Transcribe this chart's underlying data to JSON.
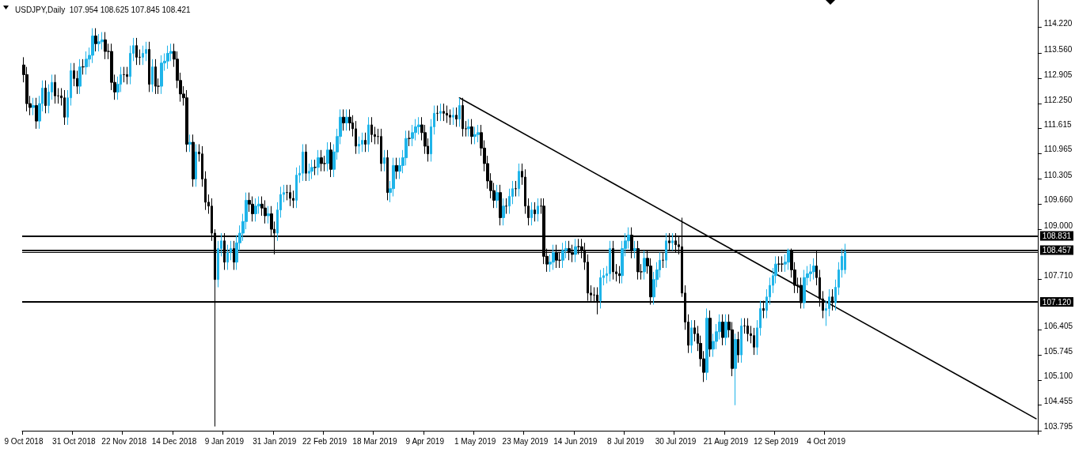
{
  "chart_data": {
    "type": "candlestick",
    "title": "USDJPY,Daily  107.954 108.625 107.845 108.421",
    "categories": [
      "9 Oct 2018",
      null,
      null,
      null,
      null,
      null,
      null,
      null,
      null,
      null,
      null,
      null,
      null,
      null,
      null,
      null,
      "31 Oct 2018",
      null,
      null,
      null,
      null,
      null,
      null,
      null,
      null,
      null,
      null,
      null,
      null,
      null,
      null,
      null,
      "22 Nov 2018",
      null,
      null,
      null,
      null,
      null,
      null,
      null,
      null,
      null,
      null,
      null,
      null,
      null,
      null,
      null,
      "14 Dec 2018",
      null,
      null,
      null,
      null,
      null,
      null,
      null,
      null,
      null,
      null,
      null,
      null,
      null,
      null,
      null,
      "9 Jan 2019",
      null,
      null,
      null,
      null,
      null,
      null,
      null,
      null,
      null,
      null,
      null,
      null,
      null,
      null,
      null,
      "31 Jan 2019",
      null,
      null,
      null,
      null,
      null,
      null,
      null,
      null,
      null,
      null,
      null,
      null,
      null,
      null,
      null,
      "22 Feb 2019",
      null,
      null,
      null,
      null,
      null,
      null,
      null,
      null,
      null,
      null,
      null,
      null,
      null,
      null,
      null,
      "18 Mar 2019",
      null,
      null,
      null,
      null,
      null,
      null,
      null,
      null,
      null,
      null,
      null,
      null,
      null,
      null,
      null,
      "9 Apr 2019",
      null,
      null,
      null,
      null,
      null,
      null,
      null,
      null,
      null,
      null,
      null,
      null,
      null,
      null,
      null,
      "1 May 2019",
      null,
      null,
      null,
      null,
      null,
      null,
      null,
      null,
      null,
      null,
      null,
      null,
      null,
      null,
      null,
      "23 May 2019",
      null,
      null,
      null,
      null,
      null,
      null,
      null,
      null,
      null,
      null,
      null,
      null,
      null,
      null,
      null,
      "14 Jun 2019",
      null,
      null,
      null,
      null,
      null,
      null,
      null,
      null,
      null,
      null,
      null,
      null,
      null,
      null,
      null,
      "8 Jul 2019",
      null,
      null,
      null,
      null,
      null,
      null,
      null,
      null,
      null,
      null,
      null,
      null,
      null,
      null,
      null,
      "30 Jul 2019",
      null,
      null,
      null,
      null,
      null,
      null,
      null,
      null,
      null,
      null,
      null,
      null,
      null,
      null,
      null,
      "21 Aug 2019",
      null,
      null,
      null,
      null,
      null,
      null,
      null,
      null,
      null,
      null,
      null,
      null,
      null,
      null,
      null,
      "12 Sep 2019",
      null,
      null,
      null,
      null,
      null,
      null,
      null,
      null,
      null,
      null,
      null,
      null,
      null,
      null,
      null,
      "4 Oct 2019",
      null,
      null,
      null,
      null,
      null,
      null,
      null,
      null,
      null,
      null,
      null,
      null,
      null,
      null,
      null,
      null,
      null,
      null,
      null,
      null,
      null,
      null,
      null,
      null,
      null,
      null,
      null,
      null,
      null,
      null,
      null,
      null,
      null,
      null,
      null,
      null,
      null,
      null,
      null,
      null,
      null,
      null,
      null,
      null,
      null,
      null,
      null,
      null,
      null,
      null,
      null,
      null,
      null,
      null,
      null,
      null,
      null,
      null,
      null,
      null,
      null,
      null,
      null,
      null,
      null,
      null,
      null
    ],
    "ohlc": [
      [
        113.25,
        113.45,
        112.8,
        113.0
      ],
      [
        113.0,
        113.2,
        112.05,
        112.25
      ],
      [
        112.25,
        112.45,
        111.95,
        112.15
      ],
      [
        112.15,
        112.4,
        111.95,
        112.2
      ],
      [
        112.2,
        112.4,
        111.6,
        111.8
      ],
      [
        111.8,
        112.45,
        111.6,
        112.25
      ],
      [
        112.25,
        112.85,
        112.05,
        112.65
      ],
      [
        112.65,
        112.85,
        112.0,
        112.2
      ],
      [
        112.2,
        112.75,
        112.0,
        112.55
      ],
      [
        112.55,
        113.0,
        112.35,
        112.8
      ],
      [
        112.8,
        113.0,
        112.25,
        112.45
      ],
      [
        112.45,
        112.65,
        112.25,
        112.45
      ],
      [
        112.45,
        112.65,
        112.2,
        112.4
      ],
      [
        112.4,
        112.6,
        111.7,
        111.9
      ],
      [
        111.9,
        112.6,
        111.7,
        112.4
      ],
      [
        112.4,
        113.3,
        112.2,
        113.1
      ],
      [
        113.1,
        113.3,
        112.7,
        112.9
      ],
      [
        112.9,
        113.1,
        112.5,
        112.7
      ],
      [
        112.7,
        113.4,
        112.5,
        113.2
      ],
      [
        113.2,
        113.4,
        113.0,
        113.2
      ],
      [
        113.2,
        113.6,
        113.0,
        113.4
      ],
      [
        113.4,
        113.7,
        113.2,
        113.5
      ],
      [
        113.5,
        114.2,
        113.3,
        114.0
      ],
      [
        114.0,
        114.2,
        113.6,
        113.8
      ],
      [
        113.8,
        114.05,
        113.6,
        113.85
      ],
      [
        113.85,
        114.1,
        113.65,
        113.9
      ],
      [
        113.9,
        114.1,
        113.4,
        113.6
      ],
      [
        113.6,
        113.8,
        113.4,
        113.6
      ],
      [
        113.6,
        113.8,
        112.6,
        112.8
      ],
      [
        112.8,
        113.0,
        112.35,
        112.55
      ],
      [
        112.55,
        112.95,
        112.35,
        112.75
      ],
      [
        112.75,
        113.2,
        112.55,
        113.0
      ],
      [
        113.0,
        113.2,
        112.8,
        113.0
      ],
      [
        113.0,
        113.2,
        112.75,
        112.95
      ],
      [
        112.95,
        113.75,
        112.75,
        113.55
      ],
      [
        113.55,
        113.95,
        113.35,
        113.75
      ],
      [
        113.75,
        113.95,
        113.25,
        113.45
      ],
      [
        113.45,
        113.65,
        113.25,
        113.45
      ],
      [
        113.45,
        113.75,
        113.25,
        113.55
      ],
      [
        113.55,
        113.85,
        113.35,
        113.65
      ],
      [
        113.65,
        113.85,
        112.55,
        112.75
      ],
      [
        112.75,
        113.4,
        112.55,
        113.2
      ],
      [
        113.2,
        113.4,
        112.5,
        112.7
      ],
      [
        112.7,
        112.9,
        112.5,
        112.7
      ],
      [
        112.7,
        113.5,
        112.5,
        113.3
      ],
      [
        113.3,
        113.55,
        113.1,
        113.35
      ],
      [
        113.35,
        113.75,
        113.15,
        113.55
      ],
      [
        113.55,
        113.8,
        113.35,
        113.6
      ],
      [
        113.6,
        113.8,
        113.2,
        113.4
      ],
      [
        113.4,
        113.6,
        112.65,
        112.85
      ],
      [
        112.85,
        113.05,
        112.3,
        112.5
      ],
      [
        112.5,
        112.7,
        112.2,
        112.4
      ],
      [
        112.4,
        112.6,
        111.0,
        111.2
      ],
      [
        111.2,
        111.45,
        111.0,
        111.25
      ],
      [
        111.25,
        111.45,
        110.1,
        110.3
      ],
      [
        110.3,
        111.2,
        110.1,
        111.0
      ],
      [
        111.0,
        111.2,
        110.75,
        110.95
      ],
      [
        110.95,
        111.15,
        110.1,
        110.3
      ],
      [
        110.3,
        110.5,
        109.5,
        109.7
      ],
      [
        109.7,
        109.9,
        109.4,
        109.6
      ],
      [
        109.6,
        109.8,
        108.7,
        108.9
      ],
      [
        108.9,
        109.0,
        103.9,
        107.7
      ],
      [
        107.7,
        108.7,
        107.5,
        108.5
      ],
      [
        108.5,
        108.9,
        108.3,
        108.7
      ],
      [
        108.7,
        108.9,
        107.95,
        108.15
      ],
      [
        108.15,
        108.6,
        107.95,
        108.4
      ],
      [
        108.4,
        108.7,
        108.2,
        108.5
      ],
      [
        108.5,
        108.7,
        107.95,
        108.15
      ],
      [
        108.15,
        108.85,
        107.95,
        108.65
      ],
      [
        108.65,
        109.1,
        108.45,
        108.9
      ],
      [
        108.9,
        109.4,
        108.7,
        109.2
      ],
      [
        109.2,
        109.95,
        109.0,
        109.75
      ],
      [
        109.75,
        109.95,
        109.45,
        109.65
      ],
      [
        109.65,
        109.85,
        109.2,
        109.4
      ],
      [
        109.4,
        109.8,
        109.2,
        109.6
      ],
      [
        109.6,
        109.85,
        109.4,
        109.65
      ],
      [
        109.65,
        109.85,
        109.35,
        109.55
      ],
      [
        109.55,
        109.75,
        109.15,
        109.35
      ],
      [
        109.35,
        109.6,
        109.15,
        109.4
      ],
      [
        109.4,
        109.6,
        108.8,
        109.0
      ],
      [
        109.0,
        109.2,
        108.35,
        108.9
      ],
      [
        108.9,
        109.7,
        108.7,
        109.5
      ],
      [
        109.5,
        110.1,
        109.3,
        109.9
      ],
      [
        109.9,
        110.15,
        109.7,
        109.95
      ],
      [
        109.95,
        110.15,
        109.75,
        109.95
      ],
      [
        109.95,
        110.15,
        109.6,
        109.8
      ],
      [
        109.8,
        110.0,
        109.55,
        109.75
      ],
      [
        109.75,
        110.6,
        109.55,
        110.4
      ],
      [
        110.4,
        110.65,
        110.2,
        110.45
      ],
      [
        110.45,
        111.2,
        110.25,
        111.0
      ],
      [
        111.0,
        111.2,
        110.25,
        110.45
      ],
      [
        110.45,
        110.7,
        110.25,
        110.5
      ],
      [
        110.5,
        110.8,
        110.3,
        110.6
      ],
      [
        110.6,
        110.8,
        110.4,
        110.6
      ],
      [
        110.6,
        111.05,
        110.4,
        110.85
      ],
      [
        110.85,
        111.05,
        110.5,
        110.7
      ],
      [
        110.7,
        110.9,
        110.5,
        110.7
      ],
      [
        110.7,
        111.25,
        110.5,
        111.05
      ],
      [
        111.05,
        111.25,
        110.35,
        110.55
      ],
      [
        110.55,
        111.2,
        110.35,
        111.0
      ],
      [
        111.0,
        111.6,
        110.8,
        111.4
      ],
      [
        111.4,
        112.1,
        111.2,
        111.9
      ],
      [
        111.9,
        112.1,
        111.55,
        111.75
      ],
      [
        111.75,
        112.1,
        111.55,
        111.9
      ],
      [
        111.9,
        112.1,
        111.55,
        111.75
      ],
      [
        111.75,
        111.95,
        111.4,
        111.6
      ],
      [
        111.6,
        111.8,
        110.95,
        111.15
      ],
      [
        111.15,
        111.4,
        110.95,
        111.2
      ],
      [
        111.2,
        111.5,
        111.0,
        111.3
      ],
      [
        111.3,
        111.5,
        111.0,
        111.2
      ],
      [
        111.2,
        111.9,
        111.0,
        111.7
      ],
      [
        111.7,
        111.9,
        111.25,
        111.45
      ],
      [
        111.45,
        111.65,
        111.2,
        111.4
      ],
      [
        111.4,
        111.6,
        111.2,
        111.4
      ],
      [
        111.4,
        111.6,
        110.5,
        110.7
      ],
      [
        110.7,
        111.05,
        110.5,
        110.85
      ],
      [
        110.85,
        111.05,
        109.75,
        109.95
      ],
      [
        109.95,
        110.25,
        109.7,
        110.05
      ],
      [
        110.05,
        110.85,
        109.85,
        110.65
      ],
      [
        110.65,
        110.85,
        110.3,
        110.5
      ],
      [
        110.5,
        110.85,
        110.3,
        110.65
      ],
      [
        110.65,
        111.05,
        110.45,
        110.85
      ],
      [
        110.85,
        111.55,
        110.65,
        111.35
      ],
      [
        111.35,
        111.55,
        111.15,
        111.35
      ],
      [
        111.35,
        111.7,
        111.15,
        111.5
      ],
      [
        111.5,
        111.85,
        111.3,
        111.65
      ],
      [
        111.65,
        111.9,
        111.45,
        111.7
      ],
      [
        111.7,
        111.9,
        111.3,
        111.5
      ],
      [
        111.5,
        111.7,
        110.95,
        111.15
      ],
      [
        111.15,
        111.35,
        110.75,
        110.95
      ],
      [
        110.95,
        111.85,
        110.75,
        111.65
      ],
      [
        111.65,
        112.2,
        111.45,
        112.0
      ],
      [
        112.0,
        112.2,
        111.8,
        112.0
      ],
      [
        112.0,
        112.25,
        111.8,
        112.05
      ],
      [
        112.05,
        112.25,
        111.8,
        112.0
      ],
      [
        112.0,
        112.2,
        111.75,
        111.95
      ],
      [
        111.95,
        112.1,
        111.7,
        111.9
      ],
      [
        111.9,
        112.15,
        111.7,
        111.95
      ],
      [
        111.95,
        112.15,
        111.65,
        111.85
      ],
      [
        111.85,
        112.4,
        111.65,
        112.2
      ],
      [
        112.2,
        112.4,
        111.4,
        111.6
      ],
      [
        111.6,
        111.8,
        111.4,
        111.6
      ],
      [
        111.6,
        111.85,
        111.4,
        111.65
      ],
      [
        111.65,
        111.85,
        111.2,
        111.4
      ],
      [
        111.4,
        111.65,
        111.2,
        111.45
      ],
      [
        111.45,
        111.7,
        111.25,
        111.5
      ],
      [
        111.5,
        111.7,
        110.9,
        111.1
      ],
      [
        111.1,
        111.3,
        110.5,
        110.7
      ],
      [
        110.7,
        110.9,
        110.05,
        110.25
      ],
      [
        110.25,
        110.45,
        109.8,
        110.0
      ],
      [
        110.0,
        110.2,
        109.55,
        109.75
      ],
      [
        109.75,
        110.15,
        109.55,
        109.95
      ],
      [
        109.95,
        110.15,
        109.1,
        109.3
      ],
      [
        109.3,
        109.8,
        109.1,
        109.6
      ],
      [
        109.6,
        109.8,
        109.4,
        109.6
      ],
      [
        109.6,
        110.05,
        109.4,
        109.85
      ],
      [
        109.85,
        110.25,
        109.65,
        110.05
      ],
      [
        110.05,
        110.25,
        109.85,
        110.05
      ],
      [
        110.05,
        110.7,
        109.85,
        110.5
      ],
      [
        110.5,
        110.7,
        110.15,
        110.35
      ],
      [
        110.35,
        110.55,
        109.4,
        109.6
      ],
      [
        109.6,
        109.8,
        109.1,
        109.3
      ],
      [
        109.3,
        109.7,
        109.1,
        109.5
      ],
      [
        109.5,
        109.7,
        109.2,
        109.4
      ],
      [
        109.4,
        109.8,
        109.2,
        109.6
      ],
      [
        109.6,
        109.8,
        109.4,
        109.6
      ],
      [
        109.6,
        109.8,
        108.1,
        108.3
      ],
      [
        108.3,
        108.5,
        107.9,
        108.1
      ],
      [
        108.1,
        108.35,
        107.9,
        108.15
      ],
      [
        108.15,
        108.6,
        107.95,
        108.4
      ],
      [
        108.4,
        108.6,
        108.0,
        108.2
      ],
      [
        108.2,
        108.4,
        108.0,
        108.2
      ],
      [
        108.2,
        108.65,
        108.0,
        108.45
      ],
      [
        108.45,
        108.7,
        108.25,
        108.5
      ],
      [
        108.5,
        108.7,
        108.2,
        108.4
      ],
      [
        108.4,
        108.6,
        108.15,
        108.35
      ],
      [
        108.35,
        108.75,
        108.15,
        108.55
      ],
      [
        108.55,
        108.75,
        108.35,
        108.55
      ],
      [
        108.55,
        108.75,
        108.25,
        108.45
      ],
      [
        108.45,
        108.65,
        107.95,
        108.15
      ],
      [
        108.15,
        108.35,
        107.15,
        107.35
      ],
      [
        107.35,
        107.55,
        107.1,
        107.3
      ],
      [
        107.3,
        107.5,
        107.1,
        107.3
      ],
      [
        107.3,
        107.5,
        106.8,
        107.15
      ],
      [
        107.15,
        107.95,
        106.95,
        107.75
      ],
      [
        107.75,
        108.0,
        107.55,
        107.8
      ],
      [
        107.8,
        108.05,
        107.6,
        107.85
      ],
      [
        107.85,
        108.7,
        107.65,
        108.5
      ],
      [
        108.5,
        108.7,
        107.7,
        107.9
      ],
      [
        107.9,
        108.1,
        107.65,
        107.85
      ],
      [
        107.85,
        108.05,
        107.6,
        107.8
      ],
      [
        107.8,
        108.7,
        107.6,
        108.5
      ],
      [
        108.5,
        108.9,
        108.3,
        108.7
      ],
      [
        108.7,
        109.05,
        108.5,
        108.85
      ],
      [
        108.85,
        109.05,
        108.25,
        108.45
      ],
      [
        108.45,
        108.7,
        108.25,
        108.5
      ],
      [
        108.5,
        108.7,
        107.7,
        107.9
      ],
      [
        107.9,
        108.1,
        107.7,
        107.9
      ],
      [
        107.9,
        108.45,
        107.7,
        108.25
      ],
      [
        108.25,
        108.45,
        107.85,
        108.05
      ],
      [
        108.05,
        108.25,
        107.05,
        107.25
      ],
      [
        107.25,
        107.9,
        107.05,
        107.7
      ],
      [
        107.7,
        108.15,
        107.5,
        107.95
      ],
      [
        107.95,
        108.4,
        107.75,
        108.2
      ],
      [
        108.2,
        108.4,
        108.0,
        108.2
      ],
      [
        108.2,
        108.9,
        108.0,
        108.7
      ],
      [
        108.7,
        108.9,
        108.45,
        108.65
      ],
      [
        108.65,
        108.9,
        108.45,
        108.7
      ],
      [
        108.7,
        108.9,
        108.4,
        108.6
      ],
      [
        108.6,
        108.8,
        108.35,
        108.55
      ],
      [
        108.55,
        109.3,
        107.25,
        107.35
      ],
      [
        107.35,
        107.55,
        106.4,
        106.6
      ],
      [
        106.6,
        106.8,
        105.8,
        106.0
      ],
      [
        106.0,
        106.65,
        105.8,
        106.45
      ],
      [
        106.45,
        106.65,
        106.1,
        106.3
      ],
      [
        106.3,
        106.5,
        105.85,
        106.05
      ],
      [
        106.05,
        106.25,
        105.45,
        105.65
      ],
      [
        105.65,
        105.85,
        105.05,
        105.3
      ],
      [
        105.3,
        106.95,
        105.1,
        106.7
      ],
      [
        106.7,
        106.9,
        105.7,
        105.9
      ],
      [
        105.9,
        106.3,
        105.7,
        106.1
      ],
      [
        106.1,
        106.55,
        105.9,
        106.35
      ],
      [
        106.35,
        106.8,
        106.15,
        106.6
      ],
      [
        106.6,
        106.8,
        106.0,
        106.2
      ],
      [
        106.2,
        106.8,
        106.0,
        106.6
      ],
      [
        106.6,
        106.8,
        106.2,
        106.4
      ],
      [
        106.4,
        106.6,
        105.2,
        105.4
      ],
      [
        105.4,
        106.3,
        104.45,
        106.15
      ],
      [
        106.15,
        106.35,
        105.55,
        105.75
      ],
      [
        105.75,
        106.7,
        105.55,
        106.5
      ],
      [
        106.5,
        106.7,
        106.3,
        106.5
      ],
      [
        106.5,
        106.7,
        106.1,
        106.3
      ],
      [
        106.3,
        106.5,
        106.05,
        106.25
      ],
      [
        106.25,
        106.45,
        105.75,
        105.95
      ],
      [
        105.95,
        106.65,
        105.75,
        106.45
      ],
      [
        106.45,
        107.15,
        106.25,
        106.95
      ],
      [
        106.95,
        107.15,
        106.7,
        106.9
      ],
      [
        106.9,
        107.45,
        106.7,
        107.25
      ],
      [
        107.25,
        107.75,
        107.05,
        107.55
      ],
      [
        107.55,
        108.0,
        107.35,
        107.8
      ],
      [
        107.8,
        108.3,
        107.6,
        108.1
      ],
      [
        108.1,
        108.3,
        107.9,
        108.1
      ],
      [
        108.1,
        108.3,
        107.9,
        108.1
      ],
      [
        108.1,
        108.35,
        107.9,
        108.15
      ],
      [
        108.15,
        108.5,
        107.95,
        108.45
      ],
      [
        108.45,
        108.5,
        107.75,
        107.95
      ],
      [
        107.95,
        108.15,
        107.35,
        107.55
      ],
      [
        107.55,
        107.75,
        107.35,
        107.55
      ],
      [
        107.55,
        107.75,
        106.95,
        107.1
      ],
      [
        107.1,
        107.95,
        106.95,
        107.75
      ],
      [
        107.75,
        108.05,
        107.55,
        107.85
      ],
      [
        107.85,
        108.1,
        107.65,
        107.9
      ],
      [
        107.9,
        108.25,
        107.7,
        108.05
      ],
      [
        108.05,
        108.45,
        107.55,
        107.75
      ],
      [
        107.75,
        107.95,
        107.0,
        107.2
      ],
      [
        107.2,
        107.4,
        106.7,
        106.9
      ],
      [
        106.9,
        107.15,
        106.5,
        106.95
      ],
      [
        106.95,
        107.45,
        106.75,
        107.25
      ],
      [
        107.25,
        107.45,
        106.9,
        107.1
      ],
      [
        107.1,
        107.7,
        106.9,
        107.5
      ],
      [
        107.5,
        108.15,
        107.3,
        107.95
      ],
      [
        107.95,
        108.5,
        107.75,
        108.3
      ],
      [
        107.954,
        108.625,
        107.845,
        108.421
      ],
      null,
      null,
      null,
      null,
      null,
      null,
      null,
      null,
      null,
      null,
      null,
      null,
      null,
      null,
      null,
      null,
      null,
      null,
      null,
      null,
      null,
      null,
      null,
      null,
      null,
      null,
      null,
      null,
      null,
      null,
      null,
      null,
      null,
      null,
      null,
      null,
      null,
      null,
      null,
      null,
      null,
      null,
      null,
      null,
      null,
      null,
      null,
      null,
      null,
      null,
      null,
      null,
      null,
      null,
      null,
      null,
      null,
      null,
      null,
      null,
      null
    ],
    "colors": [
      "#000000",
      "#000000",
      "#000000",
      "#1fb4e9",
      "#000000",
      "#1fb4e9",
      "#1fb4e9",
      "#000000",
      "#1fb4e9",
      "#1fb4e9",
      "#000000",
      "#000000",
      "#000000",
      "#000000",
      "#1fb4e9",
      "#1fb4e9",
      "#000000",
      "#000000",
      "#1fb4e9",
      "#000000",
      "#1fb4e9",
      "#1fb4e9",
      "#1fb4e9",
      "#000000",
      "#1fb4e9",
      "#1fb4e9",
      "#000000",
      "#000000",
      "#000000",
      "#000000",
      "#1fb4e9",
      "#1fb4e9",
      "#000000",
      "#000000",
      "#1fb4e9",
      "#1fb4e9",
      "#000000",
      "#000000",
      "#1fb4e9",
      "#1fb4e9",
      "#000000",
      "#1fb4e9",
      "#000000",
      "#000000",
      "#1fb4e9",
      "#1fb4e9",
      "#1fb4e9",
      "#1fb4e9",
      "#000000",
      "#000000",
      "#000000",
      "#000000",
      "#000000",
      "#1fb4e9",
      "#000000",
      "#1fb4e9",
      "#000000",
      "#000000",
      "#000000",
      "#000000",
      "#000000",
      "#000000",
      "#1fb4e9",
      "#1fb4e9",
      "#000000",
      "#1fb4e9",
      "#1fb4e9",
      "#000000",
      "#1fb4e9",
      "#1fb4e9",
      "#1fb4e9",
      "#1fb4e9",
      "#000000",
      "#000000",
      "#1fb4e9",
      "#1fb4e9",
      "#000000",
      "#000000",
      "#1fb4e9",
      "#000000",
      "#000000",
      "#1fb4e9",
      "#1fb4e9",
      "#1fb4e9",
      "#000000",
      "#000000",
      "#000000",
      "#1fb4e9",
      "#1fb4e9",
      "#1fb4e9",
      "#000000",
      "#1fb4e9",
      "#1fb4e9",
      "#000000",
      "#1fb4e9",
      "#000000",
      "#000000",
      "#1fb4e9",
      "#000000",
      "#1fb4e9",
      "#1fb4e9",
      "#1fb4e9",
      "#000000",
      "#1fb4e9",
      "#000000",
      "#000000",
      "#000000",
      "#1fb4e9",
      "#1fb4e9",
      "#000000",
      "#1fb4e9",
      "#000000",
      "#000000",
      "#000000",
      "#000000",
      "#1fb4e9",
      "#000000",
      "#1fb4e9",
      "#1fb4e9",
      "#000000",
      "#1fb4e9",
      "#1fb4e9",
      "#1fb4e9",
      "#000000",
      "#1fb4e9",
      "#1fb4e9",
      "#1fb4e9",
      "#000000",
      "#000000",
      "#000000",
      "#1fb4e9",
      "#1fb4e9",
      "#000000",
      "#1fb4e9",
      "#000000",
      "#000000",
      "#000000",
      "#1fb4e9",
      "#000000",
      "#1fb4e9",
      "#000000",
      "#000000",
      "#1fb4e9",
      "#000000",
      "#1fb4e9",
      "#1fb4e9",
      "#000000",
      "#000000",
      "#000000",
      "#000000",
      "#000000",
      "#1fb4e9",
      "#000000",
      "#1fb4e9",
      "#000000",
      "#1fb4e9",
      "#1fb4e9",
      "#000000",
      "#1fb4e9",
      "#000000",
      "#000000",
      "#000000",
      "#1fb4e9",
      "#000000",
      "#1fb4e9",
      "#000000",
      "#000000",
      "#000000",
      "#1fb4e9",
      "#1fb4e9",
      "#000000",
      "#000000",
      "#1fb4e9",
      "#1fb4e9",
      "#000000",
      "#000000",
      "#1fb4e9",
      "#000000",
      "#000000",
      "#000000",
      "#000000",
      "#000000",
      "#000000",
      "#000000",
      "#1fb4e9",
      "#1fb4e9",
      "#1fb4e9",
      "#1fb4e9",
      "#000000",
      "#000000",
      "#000000",
      "#1fb4e9",
      "#1fb4e9",
      "#1fb4e9",
      "#000000",
      "#1fb4e9",
      "#000000",
      "#000000",
      "#1fb4e9",
      "#000000",
      "#000000",
      "#1fb4e9",
      "#1fb4e9",
      "#1fb4e9",
      "#000000",
      "#1fb4e9",
      "#000000",
      "#1fb4e9",
      "#000000",
      "#000000",
      "#000000",
      "#000000",
      "#000000",
      "#1fb4e9",
      "#000000",
      "#000000",
      "#000000",
      "#000000",
      "#1fb4e9",
      "#000000",
      "#1fb4e9",
      "#1fb4e9",
      "#1fb4e9",
      "#000000",
      "#1fb4e9",
      "#000000",
      "#000000",
      "#1fb4e9",
      "#000000",
      "#1fb4e9",
      "#000000",
      "#000000",
      "#000000",
      "#000000",
      "#1fb4e9",
      "#1fb4e9",
      "#000000",
      "#1fb4e9",
      "#1fb4e9",
      "#1fb4e9",
      "#1fb4e9",
      "#000000",
      "#000000",
      "#1fb4e9",
      "#1fb4e9",
      "#000000",
      "#000000",
      "#000000",
      "#000000",
      "#1fb4e9",
      "#1fb4e9",
      "#1fb4e9",
      "#1fb4e9",
      "#000000",
      "#000000",
      "#000000",
      "#1fb4e9",
      "#1fb4e9",
      "#000000",
      "#1fb4e9",
      "#1fb4e9",
      "#1fb4e9",
      "#1fb4e9",
      null,
      null,
      null,
      null,
      null,
      null,
      null,
      null,
      null,
      null,
      null,
      null,
      null,
      null,
      null,
      null,
      null,
      null,
      null,
      null,
      null,
      null,
      null,
      null,
      null,
      null,
      null,
      null,
      null,
      null,
      null,
      null,
      null,
      null,
      null,
      null,
      null,
      null,
      null,
      null,
      null,
      null,
      null,
      null,
      null,
      null,
      null,
      null,
      null,
      null,
      null,
      null,
      null,
      null,
      null,
      null,
      null,
      null,
      null,
      null,
      null
    ],
    "series": [
      {
        "type": "line",
        "color": "#000000",
        "values": [
          null,
          null,
          null,
          null,
          null,
          null,
          null,
          null,
          null,
          null,
          null,
          null,
          null,
          null,
          null,
          null,
          null,
          null,
          null,
          null,
          null,
          null,
          null,
          null,
          null,
          null,
          null,
          null,
          null,
          null,
          null,
          null,
          null,
          null,
          null,
          null,
          null,
          null,
          null,
          null,
          null,
          null,
          null,
          null,
          null,
          null,
          null,
          null,
          null,
          null,
          null,
          null,
          null,
          null,
          null,
          null,
          null,
          null,
          null,
          null,
          null,
          null,
          null,
          null,
          null,
          null,
          null,
          null,
          null,
          null,
          null,
          null,
          null,
          null,
          null,
          null,
          null,
          null,
          null,
          null,
          null,
          null,
          null,
          null,
          null,
          null,
          null,
          null,
          null,
          null,
          null,
          null,
          null,
          null,
          null,
          null,
          null,
          null,
          null,
          null,
          null,
          null,
          null,
          null,
          null,
          null,
          null,
          null,
          null,
          null,
          null,
          null,
          null,
          null,
          null,
          null,
          null,
          null,
          null,
          null,
          null,
          null,
          null,
          null,
          null,
          null,
          null,
          null,
          null,
          null,
          null,
          null,
          null,
          null,
          null,
          null,
          null,
          null,
          null,
          112.4,
          null,
          null,
          null,
          null,
          null,
          null,
          null,
          null,
          null,
          null,
          null,
          null,
          null,
          null,
          null,
          null,
          null,
          null,
          null,
          null,
          null,
          null,
          null,
          null,
          null,
          null,
          null,
          null,
          null,
          null,
          null,
          null,
          null,
          null,
          null,
          null,
          null,
          null,
          null,
          null,
          null,
          null,
          null,
          null,
          null,
          null,
          null,
          null,
          null,
          null,
          null,
          null,
          null,
          null,
          null,
          null,
          null,
          null,
          null,
          null,
          null,
          null,
          null,
          null,
          null,
          null,
          null,
          null,
          null,
          null,
          null,
          null,
          null,
          null,
          null,
          null,
          null,
          null,
          null,
          null,
          null,
          null,
          null,
          null,
          null,
          null,
          null,
          null,
          null,
          null,
          null,
          null,
          null,
          null,
          null,
          null,
          null,
          null,
          null,
          null,
          null,
          null,
          null,
          null,
          null,
          null,
          null,
          null,
          null,
          null,
          null,
          null,
          null,
          null,
          null,
          null,
          null,
          null,
          null,
          null,
          null,
          null,
          null,
          null,
          null,
          null,
          null,
          null,
          null,
          null,
          null,
          null,
          null,
          null,
          null,
          null,
          null,
          null,
          null,
          null,
          null,
          null,
          null,
          null,
          null,
          null,
          null,
          null,
          null,
          null,
          null,
          null,
          null,
          null,
          null,
          null,
          null,
          null,
          null,
          null,
          null,
          null,
          null,
          null,
          null,
          null,
          null,
          null,
          null,
          null,
          null,
          null,
          null,
          null,
          null,
          null,
          null,
          null,
          null,
          null,
          null,
          null,
          null,
          104.1
        ]
      }
    ],
    "ylim": [
      103.79,
      114.93
    ],
    "yticks": [
      {
        "value": 103.795,
        "label": "103.795"
      },
      {
        "value": 104.455,
        "label": "104.455"
      },
      {
        "value": 105.1,
        "label": "105.100"
      },
      {
        "value": 105.745,
        "label": "105.745"
      },
      {
        "value": 106.405,
        "label": "106.405"
      },
      {
        "value": 107.71,
        "label": "107.710"
      },
      {
        "value": 109.0,
        "label": "109.000"
      },
      {
        "value": 109.66,
        "label": "109.660"
      },
      {
        "value": 110.305,
        "label": "110.305"
      },
      {
        "value": 110.965,
        "label": "110.965"
      },
      {
        "value": 111.615,
        "label": "111.615"
      },
      {
        "value": 112.25,
        "label": "112.250"
      },
      {
        "value": 112.905,
        "label": "112.905"
      },
      {
        "value": 113.56,
        "label": "113.560"
      },
      {
        "value": 114.22,
        "label": "114.220"
      }
    ],
    "ref_lines": [
      {
        "axis": "y",
        "value": 108.831,
        "label": "108.831"
      },
      {
        "axis": "y",
        "value": 108.457,
        "label": "108.457"
      },
      {
        "axis": "y",
        "value": 108.4,
        "label": null
      },
      {
        "axis": "y",
        "value": 107.12,
        "label": "107.120"
      }
    ],
    "marker": "none",
    "line_style": "solid",
    "grid": false
  }
}
